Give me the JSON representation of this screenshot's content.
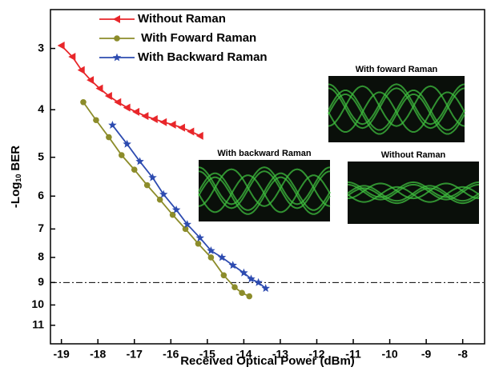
{
  "chart_data": {
    "type": "line",
    "xlabel": "Received Optical Power (dBm)",
    "ylabel_parts": [
      "-Log",
      "10",
      "BER"
    ],
    "xlim": [
      -19.3,
      -7.4
    ],
    "xticks": [
      -19,
      -18,
      -17,
      -16,
      -15,
      -14,
      -13,
      -12,
      -11,
      -10,
      -9,
      -8
    ],
    "ylim": [
      2.5,
      12
    ],
    "yticks": [
      3,
      4,
      5,
      6,
      7,
      8,
      9,
      10,
      11
    ],
    "y_scale": "log",
    "y_inverted": true,
    "reference_line": 9,
    "series": [
      {
        "name": "Without Raman",
        "color": "#e8262a",
        "marker": "triangle-left",
        "x": [
          -19,
          -18.7,
          -18.45,
          -18.2,
          -17.95,
          -17.7,
          -17.45,
          -17.2,
          -16.95,
          -16.7,
          -16.45,
          -16.2,
          -15.95,
          -15.7,
          -15.45,
          -15.2
        ],
        "values": [
          2.96,
          3.12,
          3.32,
          3.48,
          3.62,
          3.75,
          3.86,
          3.96,
          4.04,
          4.12,
          4.18,
          4.24,
          4.29,
          4.35,
          4.43,
          4.52
        ]
      },
      {
        "name": " With Foward Raman",
        "color": "#8c8c2a",
        "marker": "circle",
        "x": [
          -18.4,
          -18.05,
          -17.7,
          -17.35,
          -17.0,
          -16.65,
          -16.3,
          -15.95,
          -15.6,
          -15.25,
          -14.9,
          -14.55,
          -14.25,
          -14.05,
          -13.85
        ],
        "values": [
          3.86,
          4.2,
          4.55,
          4.95,
          5.3,
          5.7,
          6.1,
          6.55,
          7.0,
          7.5,
          8.0,
          8.7,
          9.2,
          9.45,
          9.6
        ]
      },
      {
        "name": "With Backward Raman",
        "color": "#2d4bb0",
        "marker": "star",
        "x": [
          -17.6,
          -17.2,
          -16.85,
          -16.5,
          -16.2,
          -15.85,
          -15.55,
          -15.2,
          -14.9,
          -14.6,
          -14.3,
          -14.0,
          -13.8,
          -13.6,
          -13.4
        ],
        "values": [
          4.3,
          4.7,
          5.1,
          5.5,
          5.95,
          6.4,
          6.85,
          7.3,
          7.75,
          8.0,
          8.3,
          8.6,
          8.85,
          9.0,
          9.25
        ]
      }
    ],
    "insets": [
      {
        "label": "With foward Raman"
      },
      {
        "label": "With backward Raman"
      },
      {
        "label": "Without Raman"
      }
    ]
  }
}
